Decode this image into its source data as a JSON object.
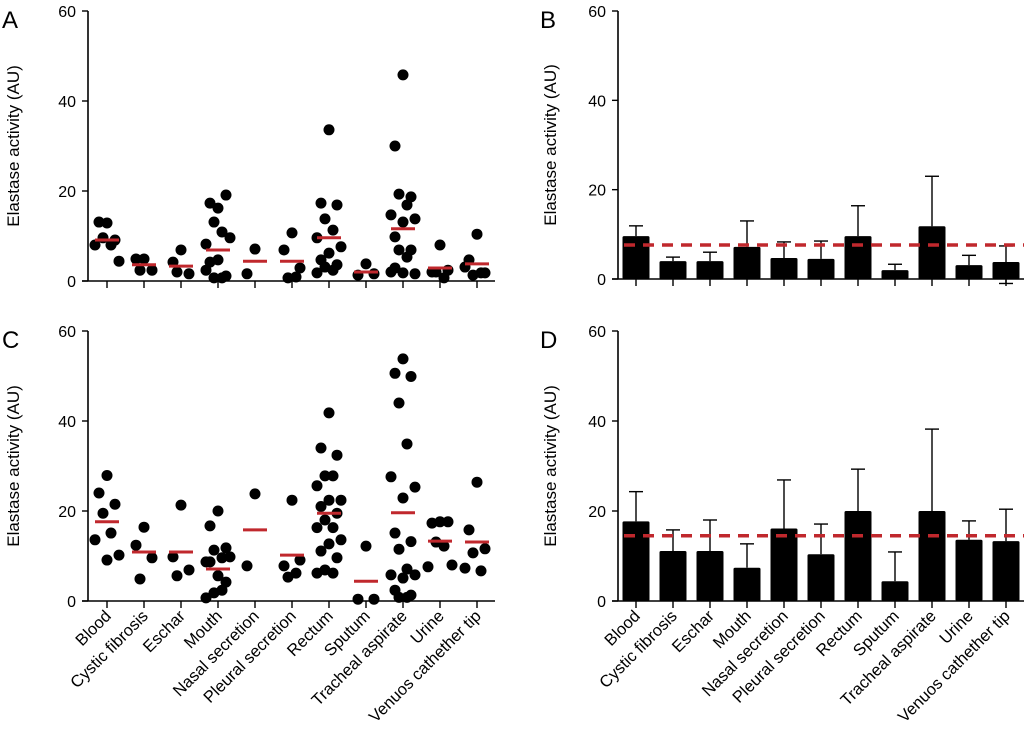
{
  "figure": {
    "colors": {
      "point": "#000000",
      "bar": "#000000",
      "mean_line": "#c0282d",
      "reference_line": "#c0282d",
      "axis": "#000000"
    }
  },
  "chart_data": [
    {
      "panel": "A",
      "type": "scatter",
      "title": "",
      "xlabel": "",
      "ylabel": "Elastase activity (AU)",
      "ylim": [
        0,
        60
      ],
      "yticks": [
        0,
        20,
        40,
        60
      ],
      "grid": false,
      "categories": [
        "Blood",
        "Cystic fibrosis",
        "Eschar",
        "Mouth",
        "Nasal secretion",
        "Pleural secretion",
        "Rectum",
        "Sputum",
        "Tracheal aspirate",
        "Urine",
        "Venuos cathether tip"
      ],
      "show_category_labels": false,
      "points": [
        [
          12.9,
          13.1,
          9.1,
          9.6,
          8.0,
          8.0,
          4.4
        ],
        [
          4.9,
          4.9,
          2.4,
          2.4
        ],
        [
          6.9,
          4.2,
          1.6,
          2.0
        ],
        [
          16.2,
          17.3,
          19.1,
          13.1,
          10.9,
          8.2,
          9.6,
          4.7,
          4.2,
          1.1,
          0.7,
          0.7,
          2.4
        ],
        [
          7.1,
          1.6
        ],
        [
          10.7,
          6.9,
          2.9,
          0.7,
          0.9
        ],
        [
          33.6,
          17.3,
          16.9,
          13.8,
          11.3,
          9.6,
          7.6,
          6.2,
          4.7,
          3.6,
          3.1,
          2.4,
          1.8
        ],
        [
          3.8,
          1.3,
          1.6
        ],
        [
          45.8,
          30.0,
          18.7,
          19.3,
          16.9,
          14.7,
          13.8,
          13.1,
          9.8,
          6.9,
          6.9,
          5.3,
          2.0,
          1.6,
          1.8,
          2.9
        ],
        [
          8.0,
          2.0,
          2.4,
          2.0,
          0.7
        ],
        [
          10.4,
          4.7,
          1.8,
          1.3,
          1.8,
          3.1
        ]
      ],
      "means": [
        9.1,
        3.6,
        3.3,
        6.9,
        4.4,
        4.4,
        9.6,
        2.0,
        11.6,
        2.9,
        3.8
      ]
    },
    {
      "panel": "B",
      "type": "bar",
      "title": "",
      "xlabel": "",
      "ylabel": "Elastase activity (AU)",
      "ylim": [
        0,
        60
      ],
      "yticks": [
        0,
        20,
        40,
        60
      ],
      "grid": false,
      "categories": [
        "Blood",
        "Cystic fibrosis",
        "Eschar",
        "Mouth",
        "Nasal secretion",
        "Pleural secretion",
        "Rectum",
        "Sputum",
        "Tracheal aspirate",
        "Urine",
        "Venuos cathether tip"
      ],
      "show_category_labels": false,
      "values": [
        9.6,
        4.0,
        4.0,
        7.2,
        4.7,
        4.5,
        9.6,
        2.0,
        11.8,
        3.1,
        3.8
      ],
      "error_upper": [
        11.9,
        4.9,
        6.0,
        13.0,
        8.3,
        8.5,
        16.4,
        3.3,
        23.0,
        5.3,
        7.4
      ],
      "error_lower": [
        null,
        null,
        null,
        null,
        null,
        null,
        null,
        null,
        null,
        null,
        -1.0
      ],
      "reference_line": 7.6
    },
    {
      "panel": "C",
      "type": "scatter",
      "title": "",
      "xlabel": "",
      "ylabel": "Elastase activity (AU)",
      "ylim": [
        0,
        60
      ],
      "yticks": [
        0,
        20,
        40,
        60
      ],
      "grid": false,
      "categories": [
        "Blood",
        "Cystic fibrosis",
        "Eschar",
        "Mouth",
        "Nasal secretion",
        "Pleural secretion",
        "Rectum",
        "Sputum",
        "Tracheal aspirate",
        "Urine",
        "Venuos cathether tip"
      ],
      "show_category_labels": true,
      "points": [
        [
          27.9,
          24.0,
          21.5,
          19.5,
          15.1,
          13.6,
          10.2,
          9.1
        ],
        [
          16.4,
          12.4,
          9.6,
          4.9
        ],
        [
          21.3,
          9.8,
          6.9,
          5.6
        ],
        [
          20.0,
          16.7,
          11.8,
          11.3,
          9.6,
          8.7,
          9.8,
          5.6,
          8.7,
          4.2,
          1.8,
          2.4,
          0.7
        ],
        [
          23.8,
          7.8
        ],
        [
          22.4,
          7.8,
          9.1,
          5.3,
          6.2
        ],
        [
          41.8,
          34.0,
          32.4,
          27.8,
          27.8,
          25.6,
          22.4,
          22.4,
          21.0,
          19.5,
          18.0,
          16.3,
          16.3,
          13.6,
          12.7,
          11.1,
          9.6,
          6.9,
          6.2,
          6.2
        ],
        [
          12.2,
          0.4,
          0.4
        ],
        [
          53.8,
          50.6,
          49.9,
          44.0,
          34.9,
          27.6,
          25.3,
          22.9,
          15.1,
          13.2,
          11.5,
          7.1,
          5.8,
          5.8,
          5.1,
          2.4,
          1.3,
          0.8,
          0.8
        ],
        [
          17.6,
          17.3,
          17.6,
          13.1,
          12.2,
          7.6,
          8.0
        ],
        [
          26.4,
          15.8,
          11.6,
          10.7,
          6.7,
          7.3
        ]
      ],
      "means": [
        17.6,
        10.9,
        10.9,
        7.1,
        15.8,
        10.2,
        19.5,
        4.4,
        19.6,
        13.3,
        13.1
      ]
    },
    {
      "panel": "D",
      "type": "bar",
      "title": "",
      "xlabel": "",
      "ylabel": "Elastase activity (AU)",
      "ylim": [
        0,
        60
      ],
      "yticks": [
        0,
        20,
        40,
        60
      ],
      "grid": false,
      "categories": [
        "Blood",
        "Cystic fibrosis",
        "Eschar",
        "Mouth",
        "Nasal secretion",
        "Pleural secretion",
        "Rectum",
        "Sputum",
        "Tracheal aspirate",
        "Urine",
        "Venuos cathether tip"
      ],
      "show_category_labels": true,
      "values": [
        17.7,
        11.1,
        11.1,
        7.4,
        16.1,
        10.4,
        20.0,
        4.4,
        20.0,
        13.6,
        13.3
      ],
      "error_upper": [
        24.3,
        15.8,
        18.0,
        12.7,
        26.9,
        17.1,
        29.3,
        10.9,
        38.2,
        17.8,
        20.4
      ],
      "error_lower": [
        null,
        null,
        null,
        null,
        null,
        null,
        null,
        null,
        null,
        null,
        null
      ],
      "reference_line": 14.5
    }
  ]
}
